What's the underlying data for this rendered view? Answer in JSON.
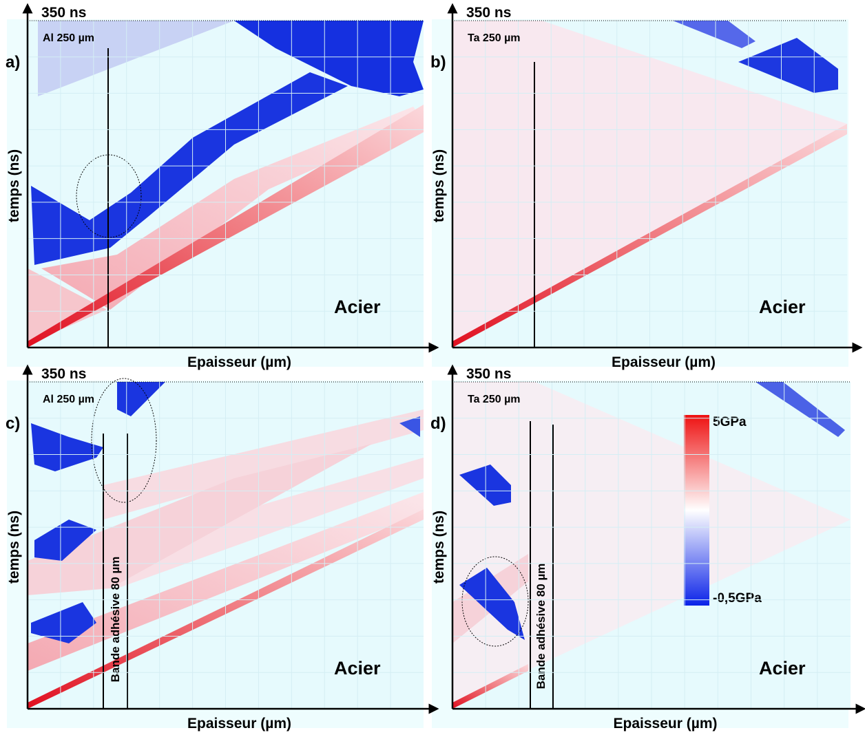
{
  "panels": [
    {
      "label": "a)",
      "time": "350 ns",
      "material": "Al 250 µm",
      "y_axis": "temps (ns)",
      "x_axis": "Epaisseur (µm)",
      "region": "Acier"
    },
    {
      "label": "b)",
      "time": "350 ns",
      "material": "Ta 250 µm",
      "y_axis": "temps (ns)",
      "x_axis": "Epaisseur (µm)",
      "region": "Acier"
    },
    {
      "label": "c)",
      "time": "350 ns",
      "material": "Al 250 µm",
      "y_axis": "temps (ns)",
      "x_axis": "Epaisseur (µm)",
      "region": "Acier",
      "band": "Bande adhésive 80 µm"
    },
    {
      "label": "d)",
      "time": "350 ns",
      "material": "Ta 250 µm",
      "y_axis": "temps (ns)",
      "x_axis": "Epaisseur (µm)",
      "region": "Acier",
      "band": "Bande adhésive 80 µm"
    }
  ],
  "colorbar": {
    "max": "5GPa",
    "min": "-0,5GPa"
  }
}
